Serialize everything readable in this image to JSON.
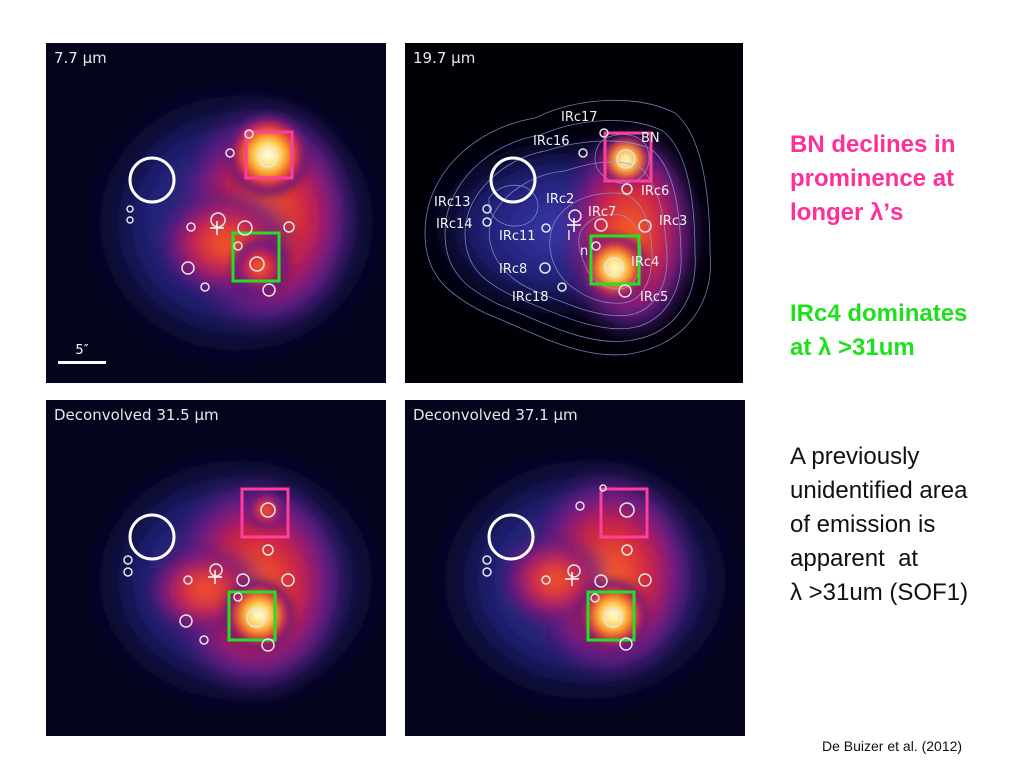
{
  "panels": {
    "p1": {
      "label": "7.7 μm",
      "scale": "5″"
    },
    "p2": {
      "label": "19.7 μm",
      "sources": [
        "IRc17",
        "BN",
        "IRc16",
        "IRc6",
        "IRc2",
        "IRc7",
        "IRc3",
        "IRc13",
        "IRc14",
        "IRc11",
        "IRc4",
        "IRc8",
        "IRc18",
        "IRc5",
        "n",
        "I"
      ]
    },
    "p3": {
      "label": "Deconvolved 31.5 μm"
    },
    "p4": {
      "label": "Deconvolved 37.1 μm"
    }
  },
  "notes": {
    "bn": [
      "BN declines in",
      "prominence at",
      "longer λ’s"
    ],
    "irc4": [
      "IRc4 dominates",
      "at λ >31um"
    ],
    "sof1": [
      "A previously",
      "unidentified area",
      "of emission is",
      "apparent  at",
      "λ >31um (SOF1)"
    ]
  },
  "citation": "De Buizer et al. (2012)",
  "colors": {
    "pink_box": "#ff3d9a",
    "green_box": "#22e022",
    "pink_text": "#ff2f9a",
    "green_text": "#1fe01f"
  }
}
